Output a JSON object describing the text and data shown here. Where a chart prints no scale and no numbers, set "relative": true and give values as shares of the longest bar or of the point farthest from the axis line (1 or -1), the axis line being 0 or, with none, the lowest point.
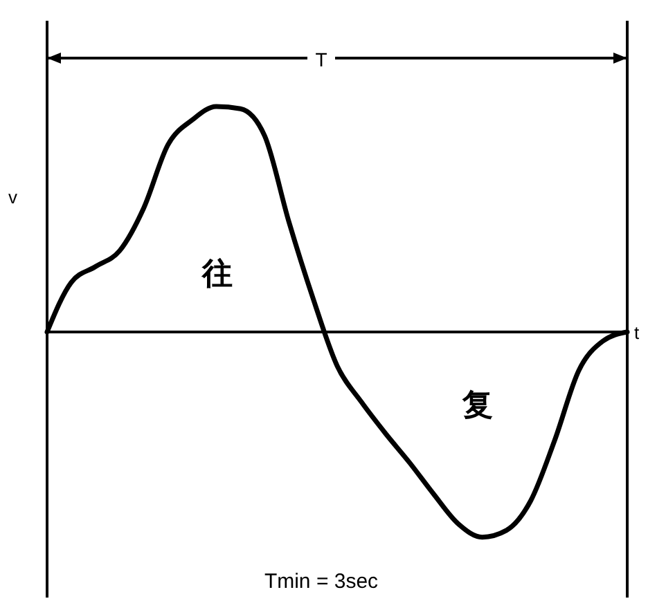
{
  "chart_data": {
    "type": "line",
    "relative": true,
    "xlabel": "t",
    "ylabel": "v",
    "categories": [
      null,
      null,
      null,
      null,
      null,
      null,
      null,
      null,
      null,
      null,
      null,
      null,
      null,
      null,
      null,
      null,
      null,
      null,
      null,
      null,
      null,
      null,
      null,
      null,
      null
    ],
    "series": [
      {
        "color": "#000000",
        "values": [
          0,
          0.22,
          0.29,
          0.36,
          0.55,
          0.83,
          0.94,
          1,
          0.99,
          0.87,
          0.49,
          0.15,
          -0.15,
          -0.31,
          -0.45,
          -0.58,
          -0.72,
          -0.85,
          -0.91,
          -0.88,
          -0.75,
          -0.48,
          -0.17,
          -0.04,
          0
        ]
      }
    ],
    "annotations": [
      "T",
      "往",
      "复",
      "Tmin = 3sec"
    ],
    "marker": "none",
    "line_style": "solid"
  }
}
